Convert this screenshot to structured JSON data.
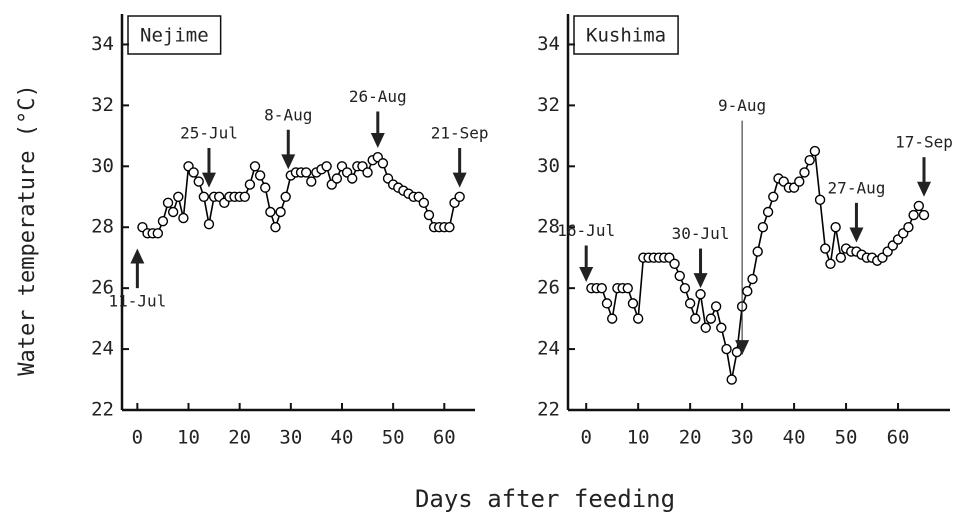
{
  "ylabel": "Water temperature (°C)",
  "xlabel": "Days after feeding",
  "chart_data": [
    {
      "type": "line",
      "title": "Nejime",
      "xlim": [
        -3,
        66
      ],
      "ylim": [
        22,
        35
      ],
      "xticks": [
        0,
        10,
        20,
        30,
        40,
        50,
        60
      ],
      "yticks": [
        22,
        24,
        26,
        28,
        30,
        32,
        34
      ],
      "x": [
        1,
        2,
        3,
        4,
        5,
        6,
        7,
        8,
        9,
        10,
        11,
        12,
        13,
        14,
        15,
        16,
        17,
        18,
        19,
        20,
        21,
        22,
        23,
        24,
        25,
        26,
        27,
        28,
        29,
        30,
        31,
        32,
        33,
        34,
        35,
        36,
        37,
        38,
        39,
        40,
        41,
        42,
        43,
        44,
        45,
        46,
        47,
        48,
        49,
        50,
        51,
        52,
        53,
        54,
        55,
        56,
        57,
        58,
        59,
        60,
        61,
        62,
        63
      ],
      "series": [
        {
          "color": "#000000",
          "values": [
            28.0,
            27.8,
            27.8,
            27.8,
            28.2,
            28.8,
            28.5,
            29.0,
            28.3,
            30.0,
            29.8,
            29.5,
            29.0,
            28.1,
            29.0,
            29.0,
            28.8,
            29.0,
            29.0,
            29.0,
            29.0,
            29.4,
            30.0,
            29.7,
            29.3,
            28.5,
            28.0,
            28.5,
            29.0,
            29.7,
            29.8,
            29.8,
            29.8,
            29.5,
            29.8,
            29.9,
            30.0,
            29.4,
            29.6,
            30.0,
            29.8,
            29.6,
            30.0,
            30.0,
            29.8,
            30.2,
            30.3,
            30.1,
            29.6,
            29.4,
            29.3,
            29.2,
            29.1,
            29.0,
            29.0,
            28.8,
            28.4,
            28.0,
            28.0,
            28.0,
            28.0,
            28.8,
            29.0
          ]
        }
      ],
      "annotations": [
        {
          "text": "11-Jul",
          "x": 0,
          "y": 27.3,
          "from_y": 26.0
        },
        {
          "text": "25-Jul",
          "x": 14,
          "y": 29.3,
          "from_y": 30.6
        },
        {
          "text": "8-Aug",
          "x": 29.5,
          "y": 29.9,
          "from_y": 31.2
        },
        {
          "text": "26-Aug",
          "x": 47,
          "y": 30.6,
          "from_y": 31.8
        },
        {
          "text": "21-Sep",
          "x": 63,
          "y": 29.3,
          "from_y": 30.6
        }
      ]
    },
    {
      "type": "line",
      "title": "Kushima",
      "xlim": [
        -3.5,
        70
      ],
      "ylim": [
        22,
        35
      ],
      "xticks": [
        0,
        10,
        20,
        30,
        40,
        50,
        60
      ],
      "yticks": [
        22,
        24,
        26,
        28,
        30,
        32,
        34
      ],
      "x": [
        1,
        2,
        3,
        4,
        5,
        6,
        7,
        8,
        9,
        10,
        11,
        12,
        13,
        14,
        15,
        16,
        17,
        18,
        19,
        20,
        21,
        22,
        23,
        24,
        25,
        26,
        27,
        28,
        29,
        30,
        31,
        32,
        33,
        34,
        35,
        36,
        37,
        38,
        39,
        40,
        41,
        42,
        43,
        44,
        45,
        46,
        47,
        48,
        49,
        50,
        51,
        52,
        53,
        54,
        55,
        56,
        57,
        58,
        59,
        60,
        61,
        62,
        63,
        64,
        65
      ],
      "series": [
        {
          "color": "#000000",
          "values": [
            26.0,
            26.0,
            26.0,
            25.5,
            25.0,
            26.0,
            26.0,
            26.0,
            25.5,
            25.0,
            27.0,
            27.0,
            27.0,
            27.0,
            27.0,
            27.0,
            26.8,
            26.4,
            26.0,
            25.5,
            25.0,
            25.8,
            24.7,
            25.0,
            25.4,
            24.7,
            24.0,
            23.0,
            23.9,
            25.4,
            25.9,
            26.3,
            27.2,
            28.0,
            28.5,
            29.0,
            29.6,
            29.5,
            29.3,
            29.3,
            29.5,
            29.8,
            30.2,
            30.5,
            28.9,
            27.3,
            26.8,
            28.0,
            27.0,
            27.3,
            27.2,
            27.2,
            27.1,
            27.0,
            27.0,
            26.9,
            27.0,
            27.2,
            27.4,
            27.6,
            27.8,
            28.0,
            28.4,
            28.7,
            28.4
          ]
        }
      ],
      "annotations": [
        {
          "text": "16-Jul",
          "x": 0,
          "y": 26.2,
          "from_y": 27.4
        },
        {
          "text": "30-Jul",
          "x": 22,
          "y": 26.0,
          "from_y": 27.3
        },
        {
          "text": "9-Aug",
          "x": 30,
          "y": 23.8,
          "from_y": 31.5
        },
        {
          "text": "27-Aug",
          "x": 52,
          "y": 27.5,
          "from_y": 28.8
        },
        {
          "text": "17-Sep",
          "x": 65,
          "y": 29.0,
          "from_y": 30.3
        }
      ]
    }
  ]
}
